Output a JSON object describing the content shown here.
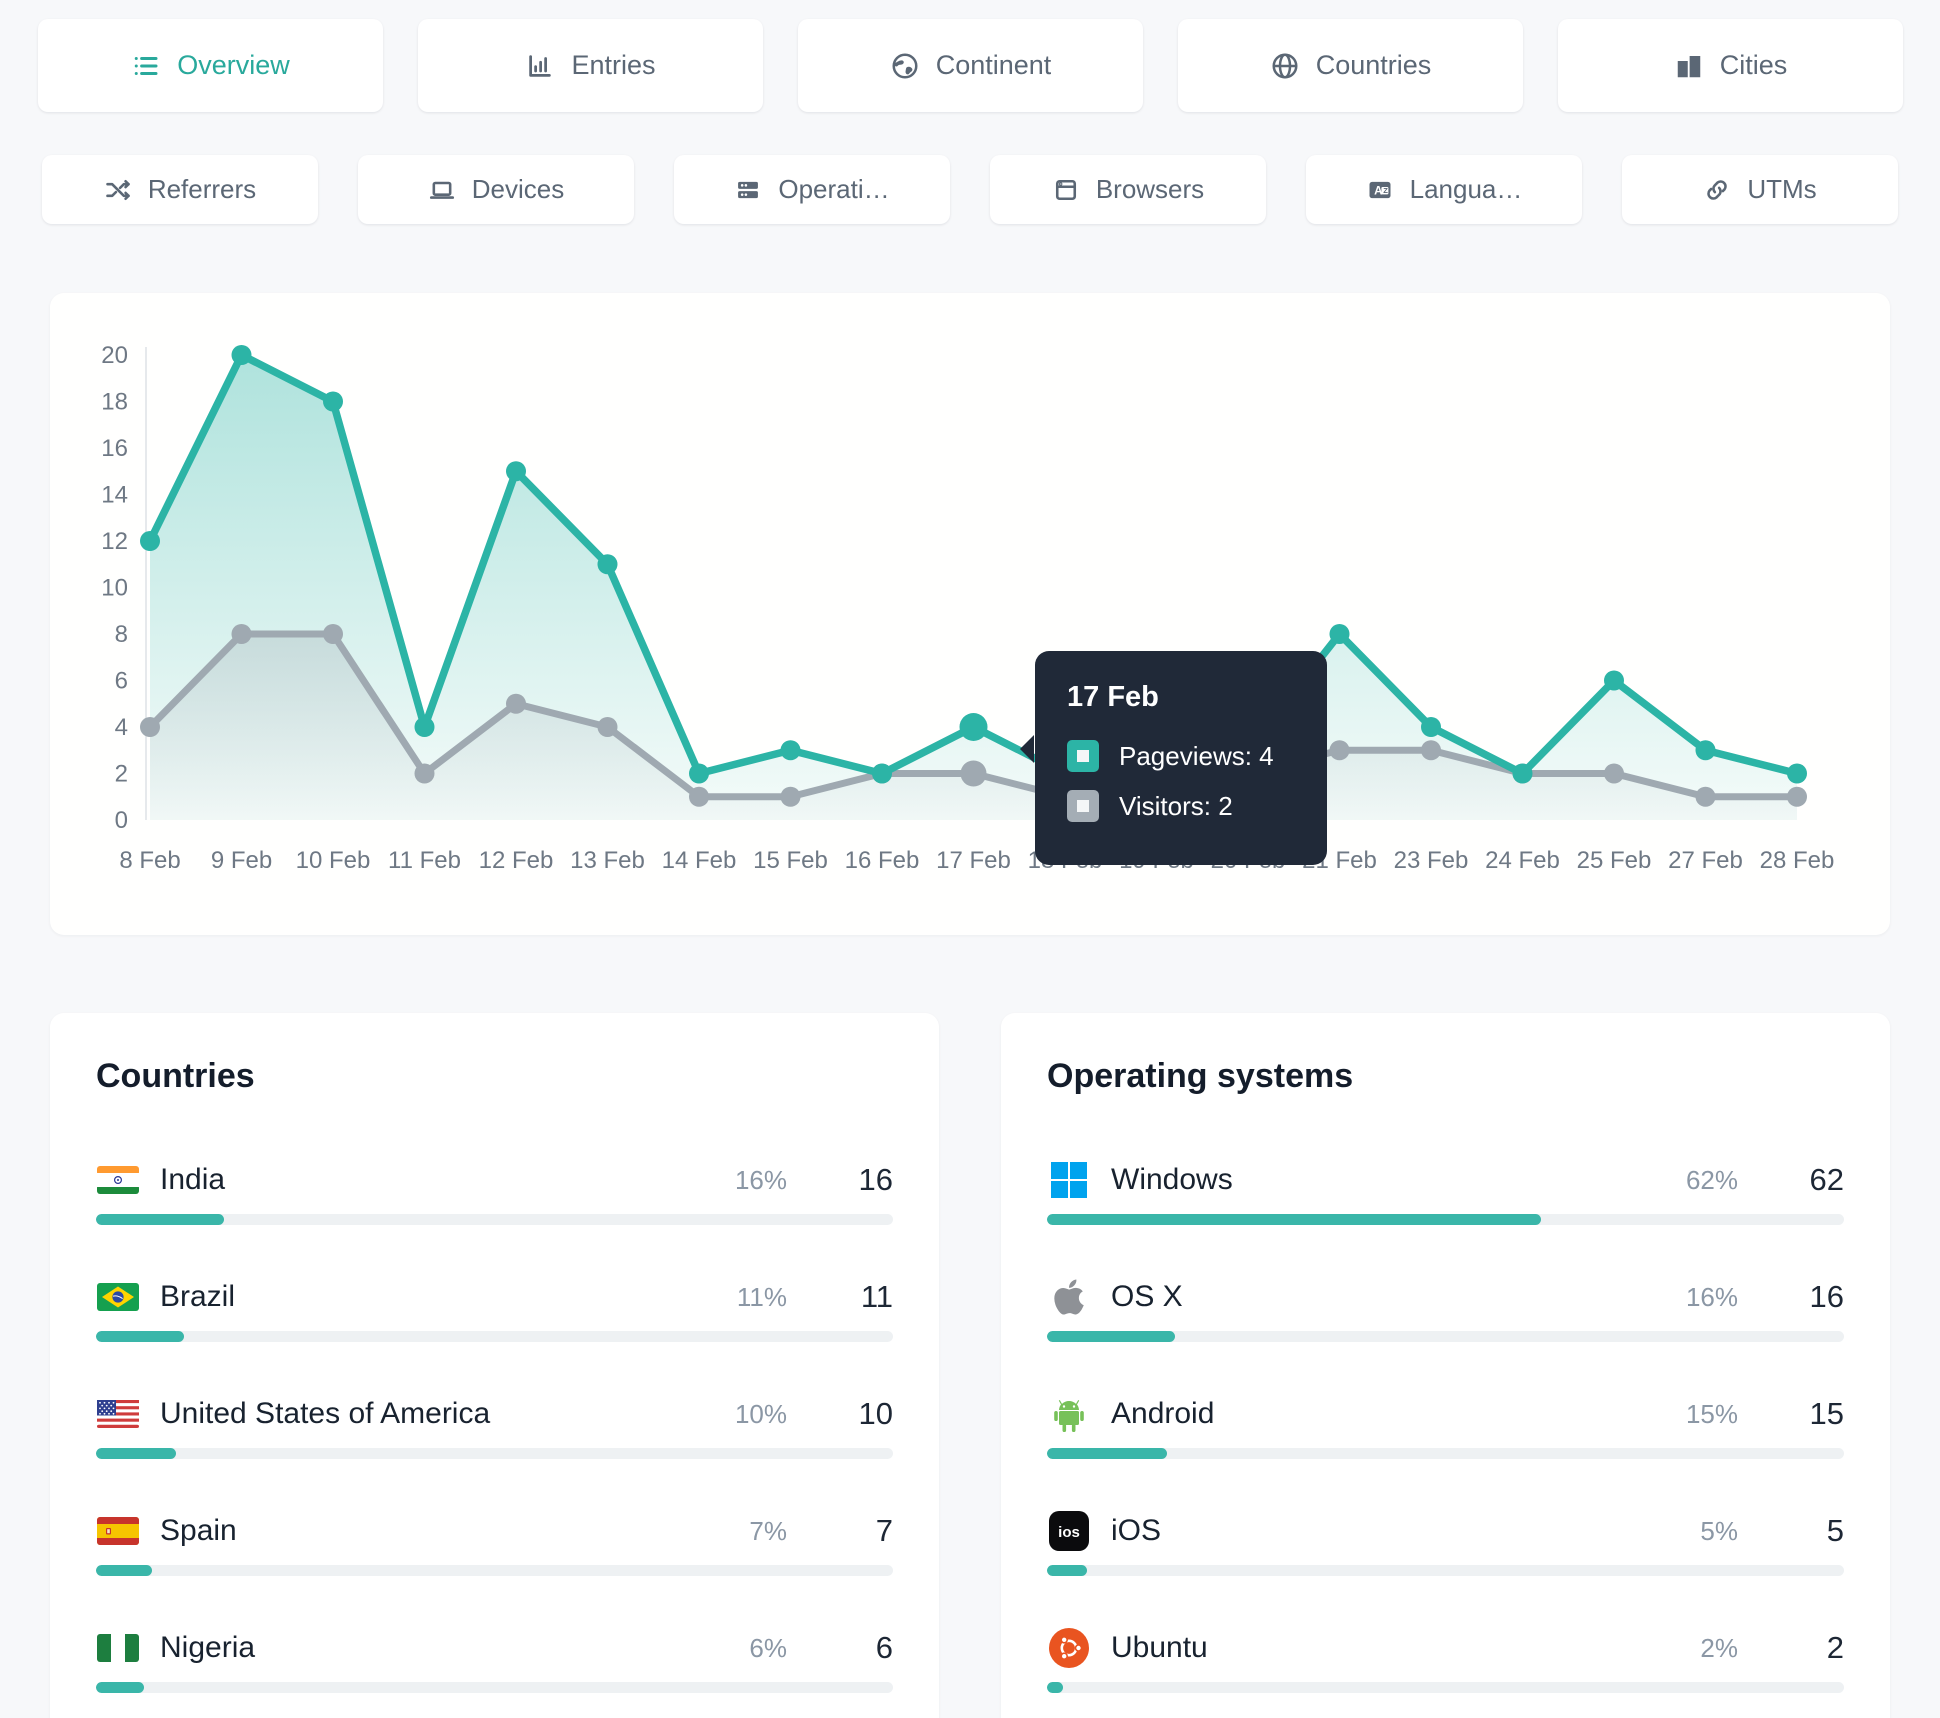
{
  "tabs": {
    "row1": [
      {
        "label": "Overview",
        "icon": "list-icon",
        "active": true
      },
      {
        "label": "Entries",
        "icon": "entries-chart-icon",
        "active": false
      },
      {
        "label": "Continent",
        "icon": "earth-icon",
        "active": false
      },
      {
        "label": "Countries",
        "icon": "globe-icon",
        "active": false
      },
      {
        "label": "Cities",
        "icon": "buildings-icon",
        "active": false
      }
    ],
    "row2": [
      {
        "label": "Referrers",
        "icon": "shuffle-icon",
        "active": false
      },
      {
        "label": "Devices",
        "icon": "laptop-icon",
        "active": false
      },
      {
        "label": "Operati…",
        "icon": "server-icon",
        "active": false
      },
      {
        "label": "Browsers",
        "icon": "browser-icon",
        "active": false
      },
      {
        "label": "Langua…",
        "icon": "language-icon",
        "active": false
      },
      {
        "label": "UTMs",
        "icon": "link-icon",
        "active": false
      }
    ]
  },
  "chart_data": {
    "type": "line",
    "categories": [
      "8 Feb",
      "9 Feb",
      "10 Feb",
      "11 Feb",
      "12 Feb",
      "13 Feb",
      "14 Feb",
      "15 Feb",
      "16 Feb",
      "17 Feb",
      "18 Feb",
      "19 Feb",
      "20 Feb",
      "21 Feb",
      "23 Feb",
      "24 Feb",
      "25 Feb",
      "27 Feb",
      "28 Feb"
    ],
    "series": [
      {
        "name": "Pageviews",
        "color": "#2cb4a6",
        "fill_top": "rgba(44,180,166,0.38)",
        "fill_bottom": "rgba(44,180,166,0.05)",
        "values": [
          12,
          20,
          18,
          4,
          15,
          11,
          2,
          3,
          2,
          4,
          2,
          3,
          3,
          8,
          4,
          2,
          6,
          3,
          2
        ]
      },
      {
        "name": "Visitors",
        "color": "#9fa9b1",
        "fill_top": "rgba(159,169,177,0.30)",
        "fill_bottom": "rgba(159,169,177,0.04)",
        "values": [
          4,
          8,
          8,
          2,
          5,
          4,
          1,
          1,
          2,
          2,
          1,
          2,
          2,
          3,
          3,
          2,
          2,
          1,
          1
        ]
      }
    ],
    "highlight_index": 9,
    "ylim": [
      0,
      20
    ],
    "ytick_step": 2,
    "grid": false,
    "legend_position": "tooltip"
  },
  "tooltip": {
    "date": "17 Feb",
    "rows": [
      {
        "text": "Pageviews: 4",
        "color": "#2cb4a6"
      },
      {
        "text": "Visitors: 2",
        "color": "#a4adb5"
      }
    ]
  },
  "countries": {
    "title": "Countries",
    "items": [
      {
        "name": "India",
        "flag": "india-flag",
        "pct": "16%",
        "value": "16"
      },
      {
        "name": "Brazil",
        "flag": "brazil-flag",
        "pct": "11%",
        "value": "11"
      },
      {
        "name": "United States of America",
        "flag": "usa-flag",
        "pct": "10%",
        "value": "10"
      },
      {
        "name": "Spain",
        "flag": "spain-flag",
        "pct": "7%",
        "value": "7"
      },
      {
        "name": "Nigeria",
        "flag": "nigeria-flag",
        "pct": "6%",
        "value": "6"
      }
    ]
  },
  "operating_systems": {
    "title": "Operating systems",
    "items": [
      {
        "name": "Windows",
        "icon": "windows-icon",
        "pct": "62%",
        "value": "62"
      },
      {
        "name": "OS X",
        "icon": "apple-icon",
        "pct": "16%",
        "value": "16"
      },
      {
        "name": "Android",
        "icon": "android-icon",
        "pct": "15%",
        "value": "15"
      },
      {
        "name": "iOS",
        "icon": "ios-icon",
        "pct": "5%",
        "value": "5"
      },
      {
        "name": "Ubuntu",
        "icon": "ubuntu-icon",
        "pct": "2%",
        "value": "2"
      }
    ]
  },
  "colors": {
    "accent": "#2cb4a6",
    "accent_bar": "#3ab6a9",
    "visitors_gray": "#9fa9b1",
    "tooltip_bg": "#202938",
    "page_bg": "#f7f8fa"
  }
}
